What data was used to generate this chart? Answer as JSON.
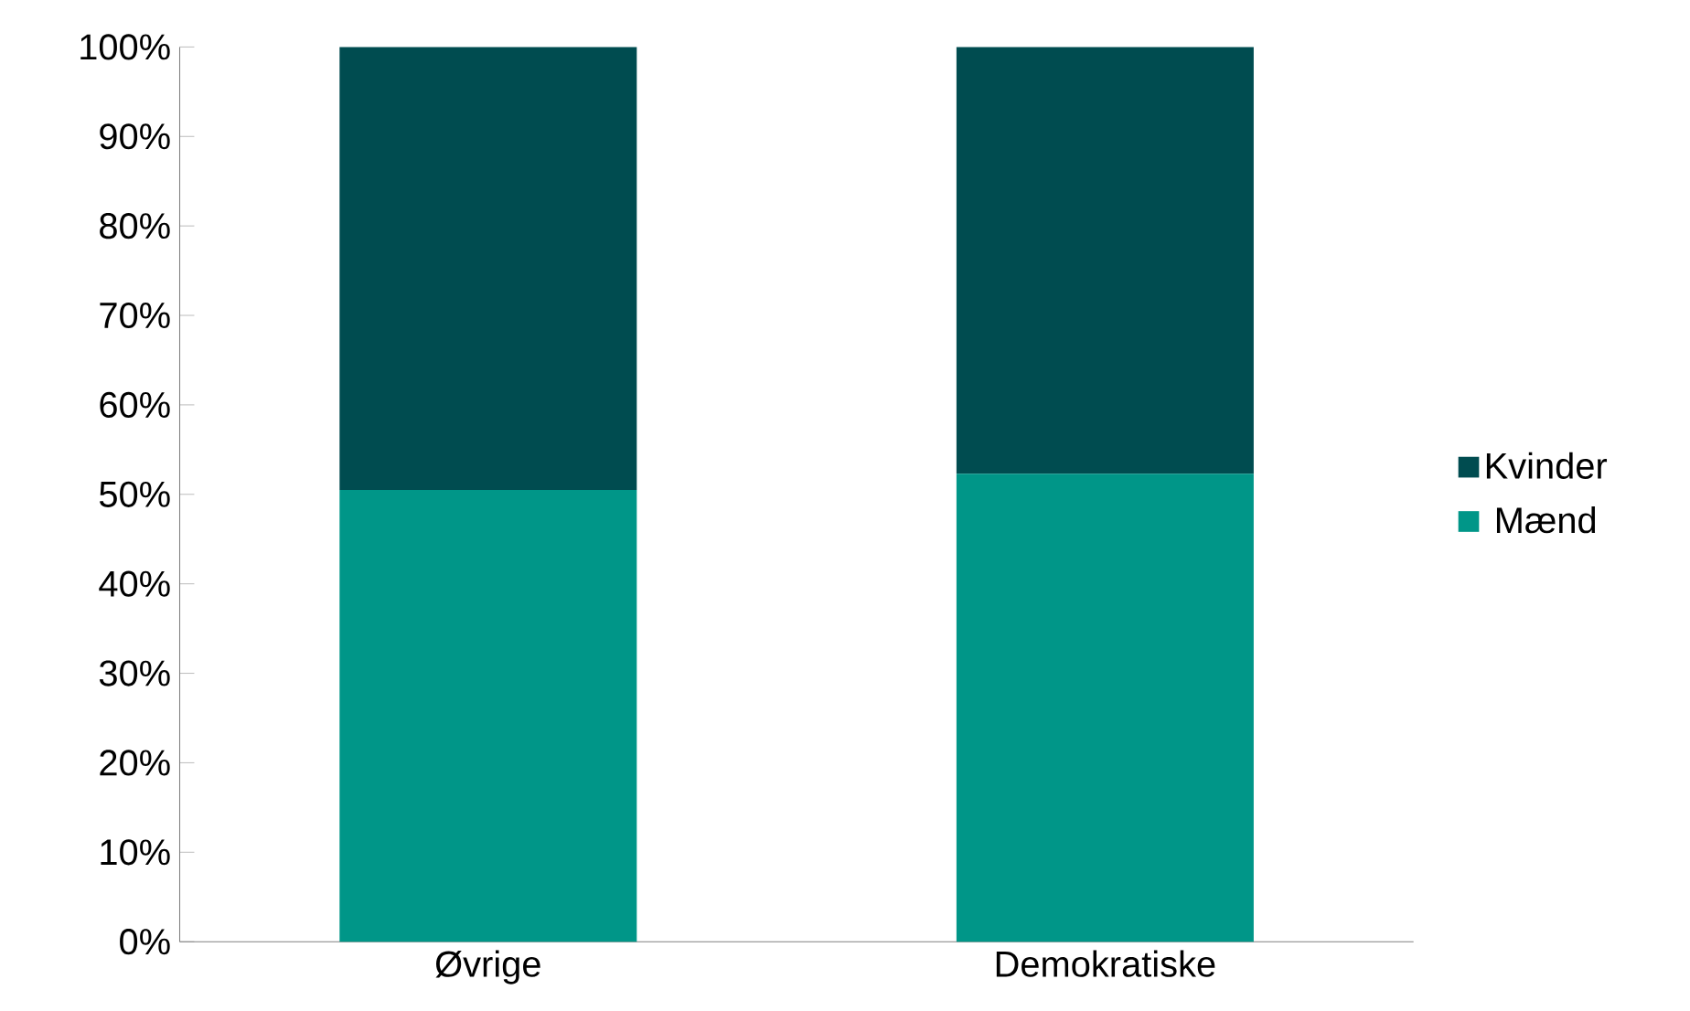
{
  "chart_data": {
    "type": "bar",
    "stacked": true,
    "categories": [
      "Øvrige",
      "Demokratiske"
    ],
    "series": [
      {
        "name": "Mænd",
        "color": "#009688",
        "values": [
          50.5,
          52.3
        ]
      },
      {
        "name": "Kvinder",
        "color": "#004c50",
        "values": [
          49.5,
          47.7
        ]
      }
    ],
    "ylim": [
      0,
      100
    ],
    "yticks": [
      {
        "value": 0,
        "label": "0%"
      },
      {
        "value": 10,
        "label": "10%"
      },
      {
        "value": 20,
        "label": "20%"
      },
      {
        "value": 30,
        "label": "30%"
      },
      {
        "value": 40,
        "label": "40%"
      },
      {
        "value": 50,
        "label": "50%"
      },
      {
        "value": 60,
        "label": "60%"
      },
      {
        "value": 70,
        "label": "70%"
      },
      {
        "value": 80,
        "label": "80%"
      },
      {
        "value": 90,
        "label": "90%"
      },
      {
        "value": 100,
        "label": "100%"
      }
    ],
    "grid": false,
    "legend": "right"
  }
}
